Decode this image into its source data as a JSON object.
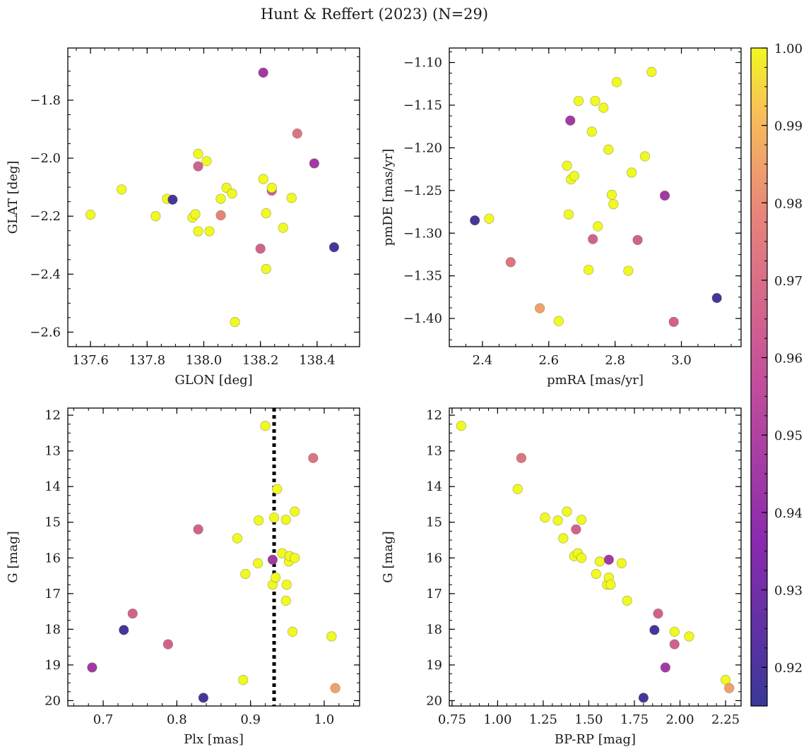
{
  "title": "Hunt & Reffert (2023) (N=29)",
  "colorbar": {
    "range": [
      0.915,
      1.0
    ],
    "ticks": [
      0.92,
      0.93,
      0.94,
      0.95,
      0.96,
      0.97,
      0.98,
      0.99,
      1.0
    ],
    "tick_labels": [
      "0.92",
      "0.93",
      "0.94",
      "0.95",
      "0.96",
      "0.97",
      "0.98",
      "0.99",
      "1.00"
    ],
    "colormap": "plasma"
  },
  "chart_data": [
    {
      "type": "scatter",
      "id": "p1",
      "xlabel": "GLON [deg]",
      "ylabel": "GLAT [deg]",
      "xlim": [
        137.52,
        138.55
      ],
      "ylim": [
        -2.65,
        -1.62
      ],
      "invert_y": false,
      "xticks": [
        137.6,
        137.8,
        138.0,
        138.2,
        138.4
      ],
      "xtick_labels": [
        "137.6",
        "137.8",
        "138.0",
        "138.2",
        "138.4"
      ],
      "yticks": [
        -2.6,
        -2.4,
        -2.2,
        -2.0,
        -1.8
      ],
      "ytick_labels": [
        "−2.6",
        "−2.4",
        "−2.2",
        "−2.0",
        "−1.8"
      ],
      "x_minor": 0.05,
      "y_minor": 0.05,
      "points": [
        {
          "x": 137.6,
          "y": -2.195,
          "c": 1.0
        },
        {
          "x": 137.71,
          "y": -2.108,
          "c": 1.0
        },
        {
          "x": 137.83,
          "y": -2.2,
          "c": 1.0
        },
        {
          "x": 137.87,
          "y": -2.14,
          "c": 1.0
        },
        {
          "x": 137.89,
          "y": -2.143,
          "c": 0.918
        },
        {
          "x": 137.96,
          "y": -2.205,
          "c": 1.0
        },
        {
          "x": 137.97,
          "y": -2.193,
          "c": 1.0
        },
        {
          "x": 137.98,
          "y": -1.985,
          "c": 1.0
        },
        {
          "x": 137.98,
          "y": -2.028,
          "c": 0.965
        },
        {
          "x": 137.98,
          "y": -2.252,
          "c": 1.0
        },
        {
          "x": 138.01,
          "y": -2.01,
          "c": 1.0
        },
        {
          "x": 138.02,
          "y": -2.252,
          "c": 1.0
        },
        {
          "x": 138.06,
          "y": -2.14,
          "c": 1.0
        },
        {
          "x": 138.06,
          "y": -2.197,
          "c": 0.978
        },
        {
          "x": 138.08,
          "y": -2.102,
          "c": 1.0
        },
        {
          "x": 138.1,
          "y": -2.122,
          "c": 1.0
        },
        {
          "x": 138.11,
          "y": -2.565,
          "c": 1.0
        },
        {
          "x": 138.2,
          "y": -2.312,
          "c": 0.965
        },
        {
          "x": 138.21,
          "y": -1.705,
          "c": 0.945
        },
        {
          "x": 138.21,
          "y": -2.072,
          "c": 1.0
        },
        {
          "x": 138.22,
          "y": -2.19,
          "c": 1.0
        },
        {
          "x": 138.22,
          "y": -2.382,
          "c": 1.0
        },
        {
          "x": 138.24,
          "y": -2.112,
          "c": 0.965
        },
        {
          "x": 138.24,
          "y": -2.102,
          "c": 1.0
        },
        {
          "x": 138.28,
          "y": -2.24,
          "c": 1.0
        },
        {
          "x": 138.31,
          "y": -2.137,
          "c": 1.0
        },
        {
          "x": 138.33,
          "y": -1.915,
          "c": 0.972
        },
        {
          "x": 138.39,
          "y": -2.018,
          "c": 0.945
        },
        {
          "x": 138.46,
          "y": -2.307,
          "c": 0.918
        }
      ]
    },
    {
      "type": "scatter",
      "id": "p2",
      "xlabel": "pmRA [mas/yr]",
      "ylabel": "pmDE [mas/yr]",
      "xlim": [
        2.3,
        3.18
      ],
      "ylim": [
        -1.433,
        -1.083
      ],
      "invert_y": false,
      "xticks": [
        2.4,
        2.6,
        2.8,
        3.0
      ],
      "xtick_labels": [
        "2.4",
        "2.6",
        "2.8",
        "3.0"
      ],
      "yticks": [
        -1.4,
        -1.35,
        -1.3,
        -1.25,
        -1.2,
        -1.15,
        -1.1
      ],
      "ytick_labels": [
        "−1.40",
        "−1.35",
        "−1.30",
        "−1.25",
        "−1.20",
        "−1.15",
        "−1.10"
      ],
      "x_minor": 0.05,
      "y_minor": 0.0125,
      "points": [
        {
          "x": 2.377,
          "y": -1.285,
          "c": 0.918
        },
        {
          "x": 2.42,
          "y": -1.283,
          "c": 1.0
        },
        {
          "x": 2.485,
          "y": -1.334,
          "c": 0.972
        },
        {
          "x": 2.573,
          "y": -1.388,
          "c": 0.985
        },
        {
          "x": 2.63,
          "y": -1.403,
          "c": 1.0
        },
        {
          "x": 2.655,
          "y": -1.221,
          "c": 1.0
        },
        {
          "x": 2.66,
          "y": -1.278,
          "c": 1.0
        },
        {
          "x": 2.665,
          "y": -1.168,
          "c": 0.945
        },
        {
          "x": 2.667,
          "y": -1.237,
          "c": 1.0
        },
        {
          "x": 2.677,
          "y": -1.233,
          "c": 1.0
        },
        {
          "x": 2.69,
          "y": -1.145,
          "c": 1.0
        },
        {
          "x": 2.72,
          "y": -1.343,
          "c": 1.0
        },
        {
          "x": 2.73,
          "y": -1.181,
          "c": 1.0
        },
        {
          "x": 2.733,
          "y": -1.307,
          "c": 0.965
        },
        {
          "x": 2.74,
          "y": -1.145,
          "c": 1.0
        },
        {
          "x": 2.748,
          "y": -1.292,
          "c": 1.0
        },
        {
          "x": 2.765,
          "y": -1.153,
          "c": 1.0
        },
        {
          "x": 2.78,
          "y": -1.202,
          "c": 1.0
        },
        {
          "x": 2.79,
          "y": -1.255,
          "c": 1.0
        },
        {
          "x": 2.795,
          "y": -1.266,
          "c": 1.0
        },
        {
          "x": 2.805,
          "y": -1.123,
          "c": 1.0
        },
        {
          "x": 2.84,
          "y": -1.344,
          "c": 1.0
        },
        {
          "x": 2.85,
          "y": -1.229,
          "c": 1.0
        },
        {
          "x": 2.868,
          "y": -1.308,
          "c": 0.965
        },
        {
          "x": 2.89,
          "y": -1.21,
          "c": 1.0
        },
        {
          "x": 2.91,
          "y": -1.111,
          "c": 1.0
        },
        {
          "x": 2.95,
          "y": -1.256,
          "c": 0.945
        },
        {
          "x": 2.977,
          "y": -1.404,
          "c": 0.965
        },
        {
          "x": 3.107,
          "y": -1.376,
          "c": 0.918
        }
      ]
    },
    {
      "type": "scatter",
      "id": "p3",
      "xlabel": "Plx [mas]",
      "ylabel": "G [mag]",
      "xlim": [
        0.652,
        1.048
      ],
      "ylim": [
        11.8,
        20.15
      ],
      "invert_y": true,
      "xticks": [
        0.7,
        0.8,
        0.9,
        1.0
      ],
      "xtick_labels": [
        "0.7",
        "0.8",
        "0.9",
        "1.0"
      ],
      "yticks": [
        12,
        13,
        14,
        15,
        16,
        17,
        18,
        19,
        20
      ],
      "ytick_labels": [
        "12",
        "13",
        "14",
        "15",
        "16",
        "17",
        "18",
        "19",
        "20"
      ],
      "x_minor": 0.02,
      "y_minor": 0.25,
      "vline": {
        "x": 0.932,
        "style": "dotted"
      },
      "points": [
        {
          "x": 0.685,
          "y": 19.07,
          "c": 0.945
        },
        {
          "x": 0.728,
          "y": 18.02,
          "c": 0.918
        },
        {
          "x": 0.74,
          "y": 17.56,
          "c": 0.965
        },
        {
          "x": 0.788,
          "y": 18.42,
          "c": 0.965
        },
        {
          "x": 0.829,
          "y": 15.2,
          "c": 0.965
        },
        {
          "x": 0.836,
          "y": 19.92,
          "c": 0.918
        },
        {
          "x": 0.882,
          "y": 15.45,
          "c": 1.0
        },
        {
          "x": 0.89,
          "y": 19.42,
          "c": 1.0
        },
        {
          "x": 0.893,
          "y": 16.45,
          "c": 1.0
        },
        {
          "x": 0.91,
          "y": 16.15,
          "c": 1.0
        },
        {
          "x": 0.911,
          "y": 14.95,
          "c": 1.0
        },
        {
          "x": 0.92,
          "y": 12.3,
          "c": 1.0
        },
        {
          "x": 0.93,
          "y": 16.05,
          "c": 0.945
        },
        {
          "x": 0.93,
          "y": 16.75,
          "c": 1.0
        },
        {
          "x": 0.932,
          "y": 14.87,
          "c": 1.0
        },
        {
          "x": 0.934,
          "y": 16.55,
          "c": 1.0
        },
        {
          "x": 0.936,
          "y": 14.07,
          "c": 1.0
        },
        {
          "x": 0.943,
          "y": 15.87,
          "c": 1.0
        },
        {
          "x": 0.948,
          "y": 17.2,
          "c": 1.0
        },
        {
          "x": 0.948,
          "y": 14.93,
          "c": 1.0
        },
        {
          "x": 0.949,
          "y": 16.75,
          "c": 1.0
        },
        {
          "x": 0.952,
          "y": 16.1,
          "c": 1.0
        },
        {
          "x": 0.953,
          "y": 15.95,
          "c": 1.0
        },
        {
          "x": 0.957,
          "y": 18.07,
          "c": 1.0
        },
        {
          "x": 0.96,
          "y": 16.0,
          "c": 1.0
        },
        {
          "x": 0.96,
          "y": 14.7,
          "c": 1.0
        },
        {
          "x": 0.985,
          "y": 13.2,
          "c": 0.972
        },
        {
          "x": 1.01,
          "y": 18.2,
          "c": 1.0
        },
        {
          "x": 1.015,
          "y": 19.65,
          "c": 0.985
        }
      ]
    },
    {
      "type": "scatter",
      "id": "p4",
      "xlabel": "BP-RP [mag]",
      "ylabel": "G [mag]",
      "xlim": [
        0.735,
        2.335
      ],
      "ylim": [
        11.8,
        20.15
      ],
      "invert_y": true,
      "xticks": [
        0.75,
        1.0,
        1.25,
        1.5,
        1.75,
        2.0,
        2.25
      ],
      "xtick_labels": [
        "0.75",
        "1.00",
        "1.25",
        "1.50",
        "1.75",
        "2.00",
        "2.25"
      ],
      "yticks": [
        12,
        13,
        14,
        15,
        16,
        17,
        18,
        19,
        20
      ],
      "ytick_labels": [
        "12",
        "13",
        "14",
        "15",
        "16",
        "17",
        "18",
        "19",
        "20"
      ],
      "x_minor": 0.05,
      "y_minor": 0.25,
      "points": [
        {
          "x": 0.8,
          "y": 12.3,
          "c": 1.0
        },
        {
          "x": 1.11,
          "y": 14.07,
          "c": 1.0
        },
        {
          "x": 1.13,
          "y": 13.2,
          "c": 0.972
        },
        {
          "x": 1.26,
          "y": 14.87,
          "c": 1.0
        },
        {
          "x": 1.33,
          "y": 14.95,
          "c": 1.0
        },
        {
          "x": 1.36,
          "y": 15.45,
          "c": 1.0
        },
        {
          "x": 1.38,
          "y": 14.7,
          "c": 1.0
        },
        {
          "x": 1.42,
          "y": 15.95,
          "c": 1.0
        },
        {
          "x": 1.43,
          "y": 15.2,
          "c": 0.965
        },
        {
          "x": 1.44,
          "y": 15.87,
          "c": 1.0
        },
        {
          "x": 1.46,
          "y": 14.93,
          "c": 1.0
        },
        {
          "x": 1.46,
          "y": 16.0,
          "c": 1.0
        },
        {
          "x": 1.54,
          "y": 16.45,
          "c": 1.0
        },
        {
          "x": 1.56,
          "y": 16.1,
          "c": 1.0
        },
        {
          "x": 1.6,
          "y": 16.75,
          "c": 1.0
        },
        {
          "x": 1.61,
          "y": 16.05,
          "c": 0.945
        },
        {
          "x": 1.61,
          "y": 16.55,
          "c": 1.0
        },
        {
          "x": 1.62,
          "y": 16.75,
          "c": 1.0
        },
        {
          "x": 1.68,
          "y": 16.15,
          "c": 1.0
        },
        {
          "x": 1.71,
          "y": 17.2,
          "c": 1.0
        },
        {
          "x": 1.8,
          "y": 19.92,
          "c": 0.918
        },
        {
          "x": 1.86,
          "y": 18.02,
          "c": 0.918
        },
        {
          "x": 1.88,
          "y": 17.56,
          "c": 0.965
        },
        {
          "x": 1.92,
          "y": 19.07,
          "c": 0.945
        },
        {
          "x": 1.97,
          "y": 18.07,
          "c": 1.0
        },
        {
          "x": 1.97,
          "y": 18.42,
          "c": 0.965
        },
        {
          "x": 2.05,
          "y": 18.2,
          "c": 1.0
        },
        {
          "x": 2.25,
          "y": 19.42,
          "c": 1.0
        },
        {
          "x": 2.27,
          "y": 19.65,
          "c": 0.985
        }
      ]
    }
  ]
}
